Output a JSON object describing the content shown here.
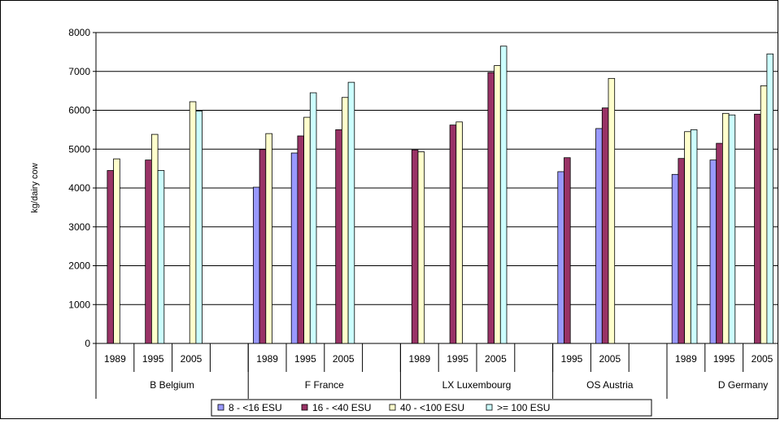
{
  "chart_data": {
    "type": "bar",
    "title": "",
    "xlabel": "",
    "ylabel": "kg/dairy cow",
    "ylim": [
      0,
      8000
    ],
    "yticks": [
      0,
      1000,
      2000,
      3000,
      4000,
      5000,
      6000,
      7000,
      8000
    ],
    "grid": true,
    "legend_position": "bottom",
    "countries": [
      {
        "name": "B Belgium",
        "groups": [
          {
            "year": "1989",
            "values": [
              null,
              4450,
              4750,
              null
            ]
          },
          {
            "year": "1995",
            "values": [
              null,
              4720,
              5380,
              4450
            ]
          },
          {
            "year": "2005",
            "values": [
              null,
              null,
              6220,
              5980
            ]
          }
        ]
      },
      {
        "name": "F France",
        "groups": [
          {
            "year": "1989",
            "values": [
              4020,
              4990,
              5400,
              null
            ]
          },
          {
            "year": "1995",
            "values": [
              4900,
              5340,
              5820,
              6450
            ]
          },
          {
            "year": "2005",
            "values": [
              null,
              5500,
              6330,
              6720
            ]
          }
        ]
      },
      {
        "name": "LX Luxembourg",
        "groups": [
          {
            "year": "1989",
            "values": [
              null,
              4980,
              4930,
              null
            ]
          },
          {
            "year": "1995",
            "values": [
              null,
              5620,
              5700,
              null
            ]
          },
          {
            "year": "2005",
            "values": [
              null,
              6970,
              7150,
              7650
            ]
          }
        ]
      },
      {
        "name": "OS Austria",
        "groups": [
          {
            "year": "1995",
            "values": [
              4420,
              4780,
              null,
              null
            ]
          },
          {
            "year": "2005",
            "values": [
              5530,
              6060,
              6820,
              null
            ]
          }
        ]
      },
      {
        "name": "D Germany",
        "groups": [
          {
            "year": "1989",
            "values": [
              4350,
              4760,
              5450,
              5500
            ]
          },
          {
            "year": "1995",
            "values": [
              4720,
              5150,
              5920,
              5880
            ]
          },
          {
            "year": "2005",
            "values": [
              null,
              5900,
              6630,
              7450
            ]
          }
        ]
      }
    ],
    "series": [
      {
        "name": "8 - <16 ESU",
        "color": "#9999ff"
      },
      {
        "name": "16 - <40 ESU",
        "color": "#993366"
      },
      {
        "name": "40 - <100 ESU",
        "color": "#ffffcc"
      },
      {
        "name": ">= 100 ESU",
        "color": "#ccffff"
      }
    ]
  }
}
